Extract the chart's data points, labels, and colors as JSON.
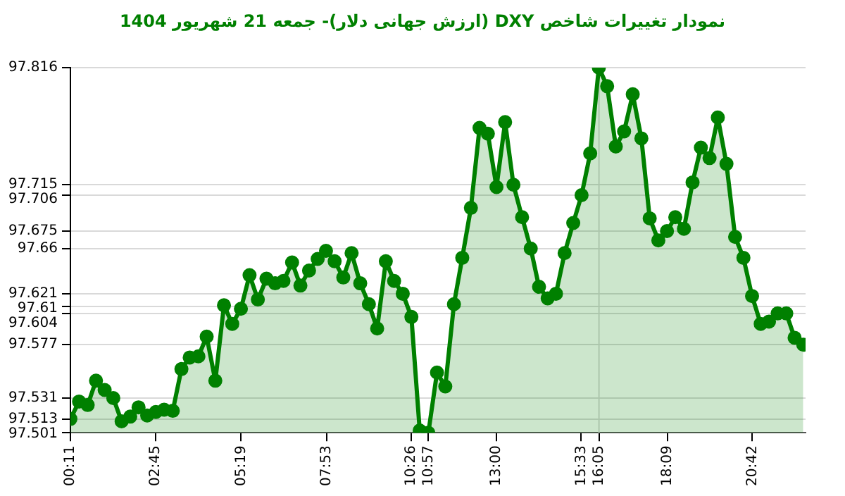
{
  "chart_data": {
    "type": "area",
    "title": "نمودار تغییرات شاخص DXY (ارزش جهانی دلار)- جمعه  21 شهریور 1404",
    "x": [
      0.18,
      0.44,
      0.7,
      0.95,
      1.21,
      1.47,
      1.72,
      1.98,
      2.23,
      2.49,
      2.75,
      3.0,
      3.26,
      3.52,
      3.77,
      4.03,
      4.28,
      4.54,
      4.8,
      5.05,
      5.31,
      5.57,
      5.82,
      6.08,
      6.34,
      6.59,
      6.85,
      7.1,
      7.36,
      7.62,
      7.87,
      8.13,
      8.39,
      8.64,
      8.9,
      9.16,
      9.41,
      9.67,
      9.92,
      10.18,
      10.44,
      10.69,
      10.95,
      11.21,
      11.46,
      11.72,
      11.97,
      12.23,
      12.49,
      12.74,
      13.0,
      13.26,
      13.51,
      13.77,
      14.03,
      14.28,
      14.54,
      14.79,
      15.05,
      15.31,
      15.56,
      15.82,
      16.08,
      16.33,
      16.59,
      16.84,
      17.1,
      17.36,
      17.61,
      17.87,
      18.13,
      18.38,
      18.64,
      18.9,
      19.15,
      19.41,
      19.66,
      19.92,
      20.18,
      20.43,
      20.69,
      20.95,
      21.2,
      21.46,
      21.72,
      21.97,
      22.23
    ],
    "series": [
      {
        "color": "#008000",
        "values": [
          97.513,
          97.528,
          97.525,
          97.546,
          97.538,
          97.531,
          97.511,
          97.515,
          97.523,
          97.516,
          97.519,
          97.521,
          97.52,
          97.556,
          97.566,
          97.567,
          97.584,
          97.546,
          97.611,
          97.595,
          97.608,
          97.637,
          97.616,
          97.634,
          97.63,
          97.632,
          97.648,
          97.628,
          97.641,
          97.651,
          97.658,
          97.649,
          97.635,
          97.656,
          97.63,
          97.612,
          97.591,
          97.649,
          97.632,
          97.621,
          97.601,
          97.503,
          97.501,
          97.553,
          97.541,
          97.612,
          97.652,
          97.695,
          97.764,
          97.759,
          97.713,
          97.769,
          97.715,
          97.687,
          97.66,
          97.627,
          97.617,
          97.621,
          97.656,
          97.682,
          97.706,
          97.742,
          97.816,
          97.8,
          97.748,
          97.761,
          97.793,
          97.755,
          97.686,
          97.667,
          97.675,
          97.687,
          97.677,
          97.717,
          97.747,
          97.738,
          97.773,
          97.733,
          97.67,
          97.652,
          97.619,
          97.595,
          97.597,
          97.604,
          97.604,
          97.583,
          97.577
        ]
      }
    ],
    "xlim": [
      0.18,
      22.3
    ],
    "ylim": [
      97.501,
      97.816
    ],
    "xticks": [
      {
        "value": 0.1833,
        "label": "00:11"
      },
      {
        "value": 2.75,
        "label": "02:45"
      },
      {
        "value": 5.3167,
        "label": "05:19"
      },
      {
        "value": 7.8833,
        "label": "07:53"
      },
      {
        "value": 10.4333,
        "label": "10:26"
      },
      {
        "value": 10.95,
        "label": "10:57"
      },
      {
        "value": 13.0,
        "label": "13:00"
      },
      {
        "value": 15.55,
        "label": "15:33"
      },
      {
        "value": 16.0833,
        "label": "16:05"
      },
      {
        "value": 18.15,
        "label": "18:09"
      },
      {
        "value": 20.7,
        "label": "20:42"
      }
    ],
    "yticks": [
      97.816,
      97.715,
      97.706,
      97.675,
      97.66,
      97.621,
      97.61,
      97.604,
      97.577,
      97.531,
      97.513,
      97.501
    ],
    "ref_lines": [
      {
        "axis": "x",
        "value": 16.0833,
        "color": "#d9d9d9"
      }
    ],
    "grid": "y",
    "marker": "circle",
    "line_style": "solid"
  }
}
